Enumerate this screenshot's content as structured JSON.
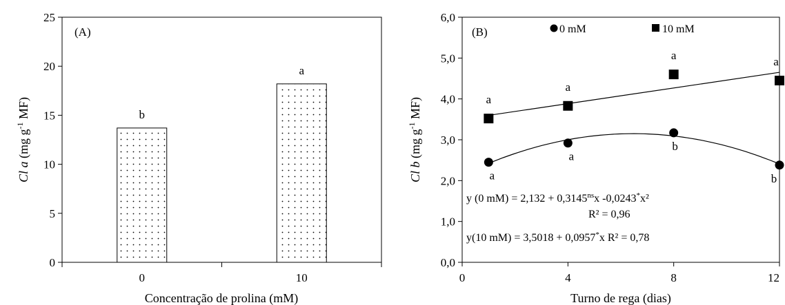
{
  "chart_data": [
    {
      "type": "bar",
      "panel_label": "(A)",
      "categories": [
        "0",
        "10"
      ],
      "values": [
        13.7,
        18.2
      ],
      "letters": [
        "b",
        "a"
      ],
      "ylim": [
        0,
        25
      ],
      "yticks": [
        0,
        5,
        10,
        15,
        20,
        25
      ],
      "ylabel": {
        "italic": "Cl a",
        "pre": " (mg g",
        "sup": "-1",
        "post": " MF)"
      },
      "xlabel": "Concentração de prolina (mM)",
      "bar_fill": "dotted",
      "grid": false
    },
    {
      "type": "scatter",
      "panel_label": "(B)",
      "xlim": [
        0,
        12
      ],
      "ylim": [
        0,
        6
      ],
      "xticks": [
        "0",
        "4",
        "8",
        "12"
      ],
      "yticks": [
        "0,0",
        "1,0",
        "2,0",
        "3,0",
        "4,0",
        "5,0",
        "6,0"
      ],
      "xlabel": "Turno de rega (dias)",
      "ylabel": {
        "italic": "Cl b",
        "pre": " (mg g",
        "sup": "-1",
        "post": " MF)"
      },
      "legend_position": "top",
      "grid": false,
      "series": [
        {
          "name": "0 mM",
          "marker": "circle",
          "x": [
            1,
            4,
            8,
            12
          ],
          "y": [
            2.45,
            2.92,
            3.17,
            2.38
          ],
          "letters": [
            "a",
            "a",
            "b",
            "b"
          ],
          "fit": {
            "type": "quadratic",
            "a": 2.132,
            "b": 0.3145,
            "c": -0.0243
          }
        },
        {
          "name": "10 mM",
          "marker": "square",
          "x": [
            1,
            4,
            8,
            12
          ],
          "y": [
            3.52,
            3.83,
            4.6,
            4.45
          ],
          "letters": [
            "a",
            "a",
            "a",
            "a"
          ],
          "fit": {
            "type": "linear",
            "a": 3.5018,
            "b": 0.0957
          }
        }
      ],
      "equations": {
        "eq1": {
          "pre": "y (0 mM) = 2,132 + 0,3145",
          "sup1": "ns",
          "mid": "x  -0,0243",
          "sup2": "*",
          "post": "x²"
        },
        "r2_1": "R² = 0,96",
        "eq2": {
          "pre": "y(10 mM) = 3,5018 + 0,0957",
          "sup": "*",
          "post": "x  R² = 0,78"
        }
      }
    }
  ]
}
